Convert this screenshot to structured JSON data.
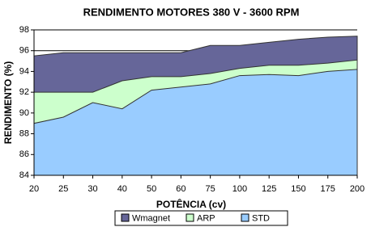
{
  "chart_data": {
    "type": "area",
    "title": "RENDIMENTO MOTORES 380 V - 3600 RPM",
    "x_label": "POTÊNCIA (cv)",
    "y_label": "RENDIMENTO (%)",
    "categories": [
      "20",
      "25",
      "30",
      "40",
      "50",
      "60",
      "75",
      "100",
      "125",
      "150",
      "175",
      "200"
    ],
    "series": [
      {
        "name": "Wmagnet",
        "color": "#666699",
        "values": [
          95.5,
          95.8,
          95.8,
          95.8,
          95.8,
          95.8,
          96.5,
          96.5,
          96.8,
          97.1,
          97.3,
          97.4
        ]
      },
      {
        "name": "ARP",
        "color": "#ccffcc",
        "values": [
          92.0,
          92.0,
          92.0,
          93.1,
          93.5,
          93.5,
          93.8,
          94.3,
          94.6,
          94.6,
          94.8,
          95.1
        ]
      },
      {
        "name": "STD",
        "color": "#99ccff",
        "values": [
          89.0,
          89.6,
          91.0,
          90.4,
          92.2,
          92.5,
          92.8,
          93.6,
          93.7,
          93.6,
          94.0,
          94.2
        ]
      }
    ],
    "ylim": [
      84,
      98
    ],
    "yticks": [
      84,
      86,
      88,
      90,
      92,
      94,
      96,
      98
    ],
    "grid": true,
    "legend": "bottom"
  }
}
